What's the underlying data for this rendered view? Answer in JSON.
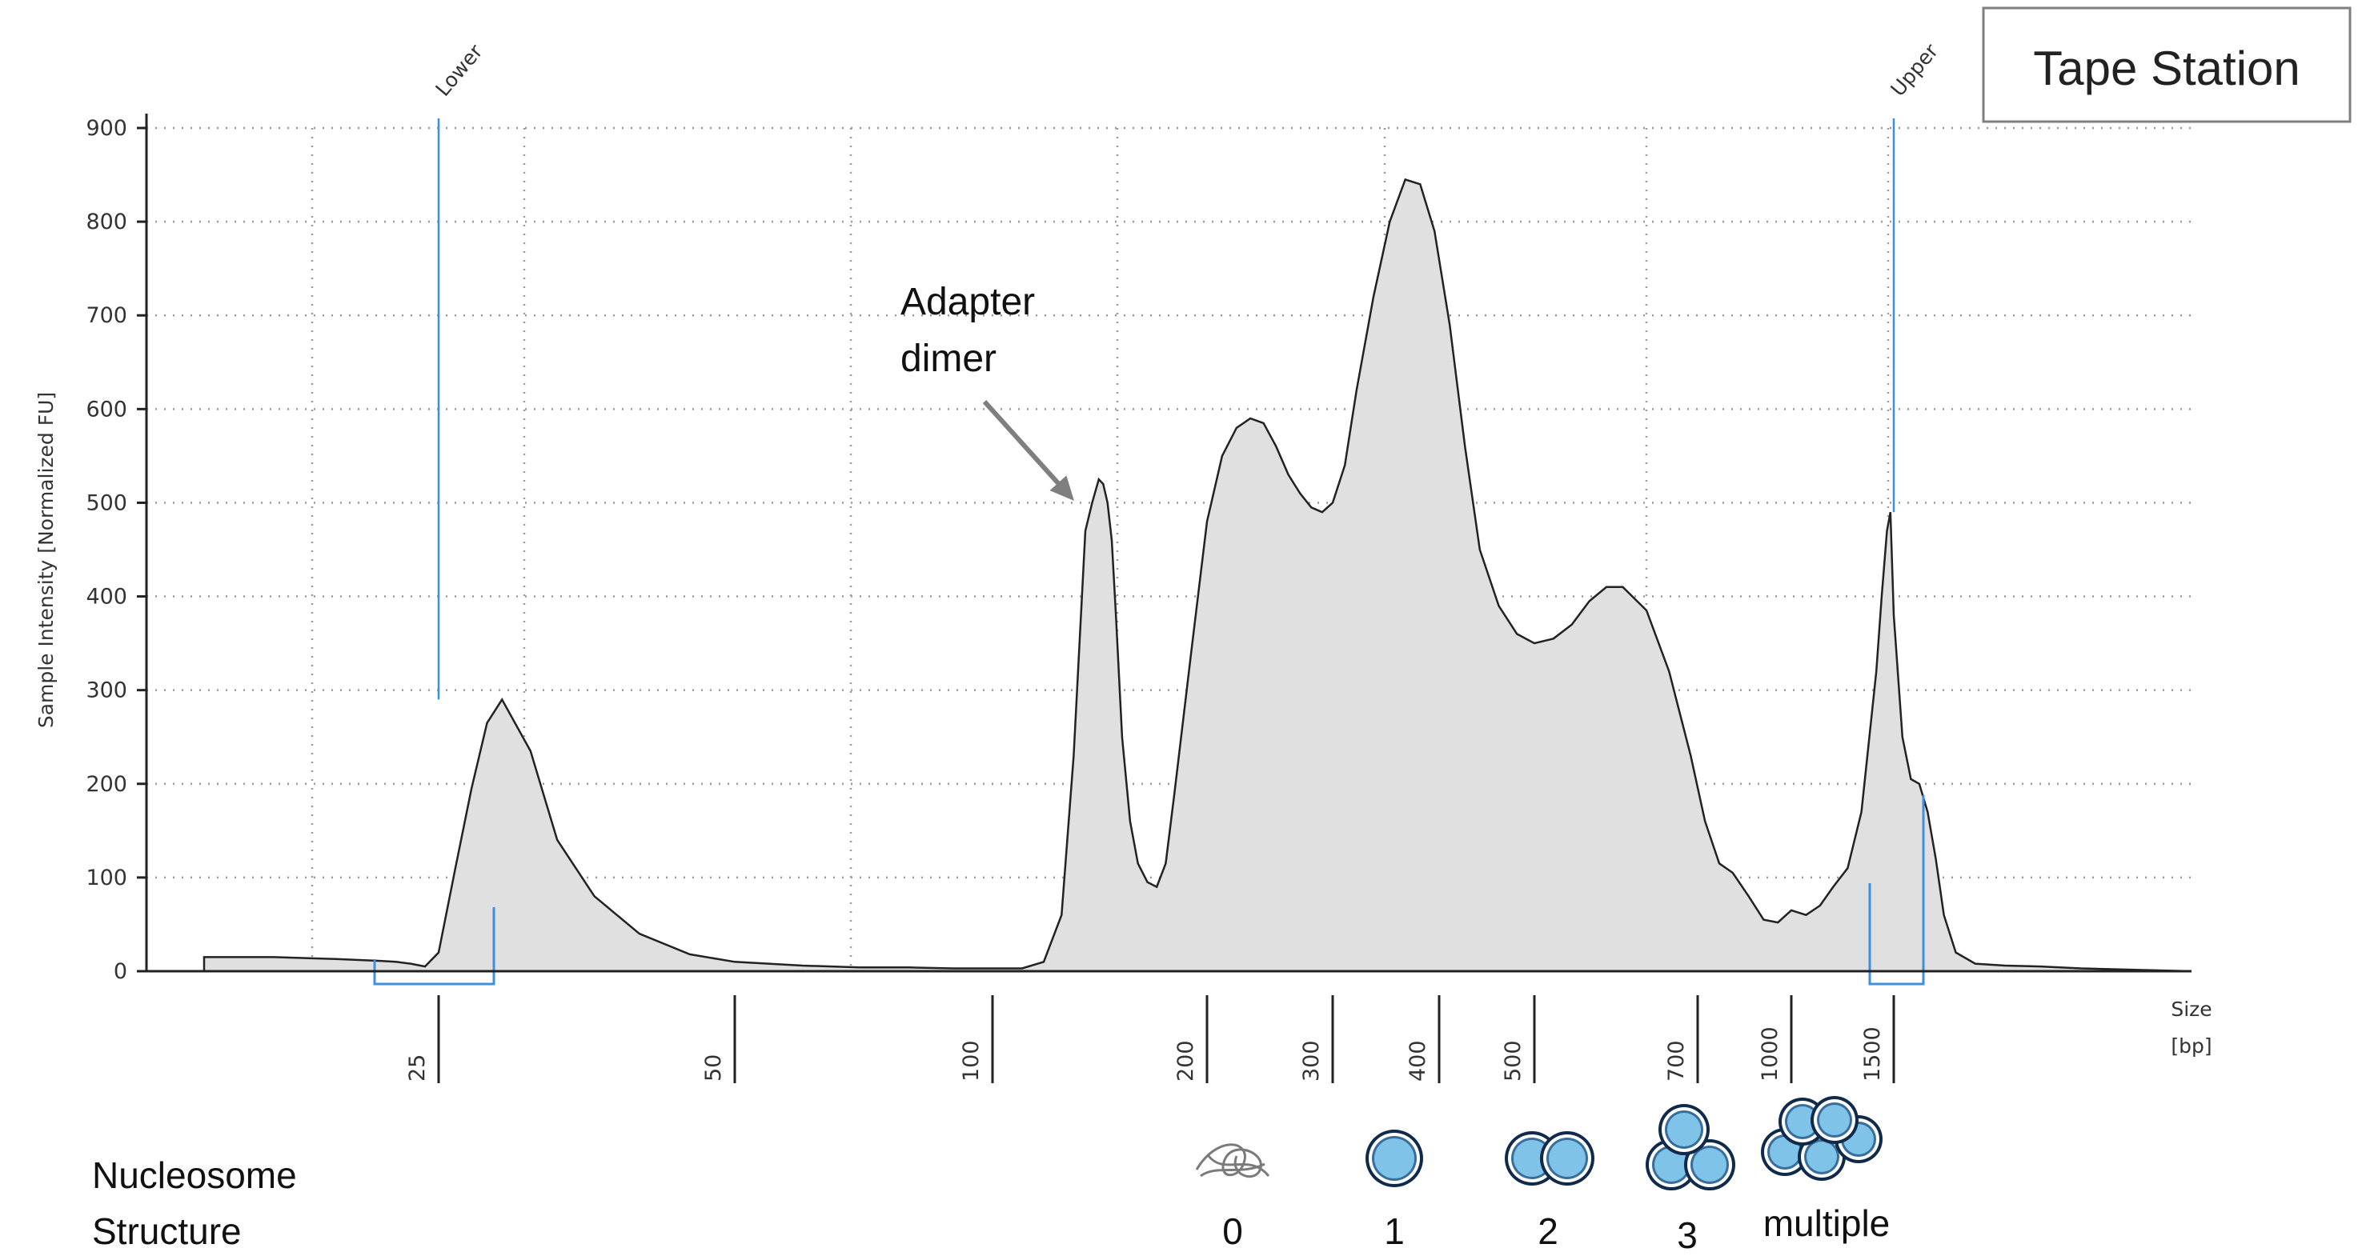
{
  "chart_data": {
    "type": "area",
    "title_box": "Tape Station",
    "ylabel": "Sample Intensity [Normalized FU]",
    "xlabel_line1": "Size",
    "xlabel_line2": "[bp]",
    "ylim": [
      0,
      900
    ],
    "yticks": [
      0,
      100,
      200,
      300,
      400,
      500,
      600,
      700,
      800,
      900
    ],
    "xtick_labels": [
      "25",
      "50",
      "100",
      "200",
      "300",
      "400",
      "500",
      "700",
      "1000",
      "1500"
    ],
    "grid": true,
    "markers": [
      {
        "label": "Lower",
        "size_bp": 25,
        "peak_value": 290
      },
      {
        "label": "Upper",
        "size_bp": 1500,
        "peak_value": 490
      }
    ],
    "annotation": {
      "line1": "Adapter",
      "line2": "dimer",
      "size_bp": 145,
      "value": 525
    },
    "series": [
      {
        "x": [
          15,
          17,
          19,
          21,
          22,
          23,
          24,
          25,
          26,
          27,
          28,
          29,
          31,
          33,
          36,
          40,
          45,
          50,
          60,
          70,
          80,
          90,
          100,
          110,
          118,
          125,
          130,
          135,
          138,
          141,
          143,
          145,
          147,
          149,
          152,
          156,
          160,
          165,
          170,
          175,
          180,
          190,
          200,
          210,
          220,
          230,
          240,
          250,
          260,
          270,
          280,
          290,
          300,
          310,
          320,
          335,
          350,
          365,
          380,
          395,
          410,
          425,
          440,
          460,
          480,
          500,
          520,
          540,
          560,
          580,
          600,
          630,
          660,
          690,
          720,
          760,
          800,
          850,
          900,
          950,
          1000,
          1060,
          1120,
          1180,
          1250,
          1320,
          1400,
          1430,
          1460,
          1480,
          1500,
          1520,
          1540,
          1560,
          1580,
          1600,
          1620,
          1650,
          1700,
          1780,
          1880,
          2000,
          2150
        ],
        "values": [
          15,
          15,
          13,
          11,
          10,
          8,
          5,
          20,
          110,
          195,
          265,
          290,
          235,
          140,
          80,
          40,
          18,
          10,
          6,
          4,
          4,
          3,
          3,
          3,
          10,
          60,
          230,
          470,
          500,
          525,
          520,
          500,
          460,
          380,
          250,
          160,
          115,
          95,
          90,
          115,
          190,
          340,
          480,
          550,
          580,
          590,
          585,
          560,
          530,
          510,
          495,
          490,
          500,
          540,
          620,
          720,
          800,
          845,
          840,
          790,
          690,
          560,
          450,
          390,
          360,
          350,
          355,
          370,
          395,
          410,
          410,
          385,
          320,
          230,
          160,
          115,
          105,
          80,
          55,
          52,
          65,
          60,
          70,
          90,
          110,
          170,
          320,
          400,
          470,
          490,
          380,
          250,
          205,
          200,
          170,
          120,
          60,
          20,
          8,
          6,
          5,
          3,
          0
        ]
      }
    ]
  },
  "nucleosome": {
    "label_line1": "Nucleosome",
    "label_line2": "Structure",
    "items": [
      {
        "label": "0",
        "icon": "free-dna-icon"
      },
      {
        "label": "1",
        "icon": "nucleosome-1-icon"
      },
      {
        "label": "2",
        "icon": "nucleosome-2-icon"
      },
      {
        "label": "3",
        "icon": "nucleosome-3-icon"
      },
      {
        "label": "multiple",
        "icon": "nucleosome-multiple-icon"
      }
    ]
  },
  "colors": {
    "fill": "#e0e0e0",
    "trace": "#222222",
    "marker": "#3d8fe0",
    "nucleosome": "#7fc3e8",
    "grid": "#9a9a9a"
  }
}
